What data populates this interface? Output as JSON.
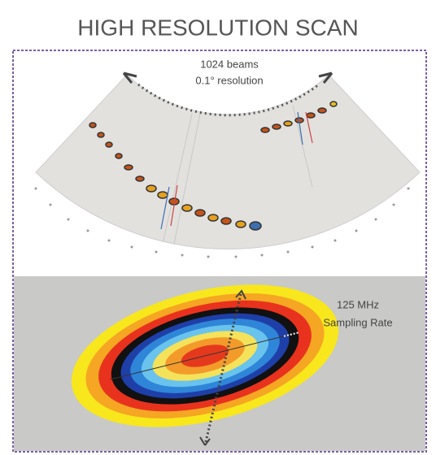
{
  "header": {
    "title": "HIGH RESOLUTION SCAN"
  },
  "top_panel": {
    "label_line1": "1024 beams",
    "label_line2": "0.1° resolution"
  },
  "bottom_panel": {
    "label_line1": "125 MHz",
    "label_line2": "Sampling Rate"
  }
}
